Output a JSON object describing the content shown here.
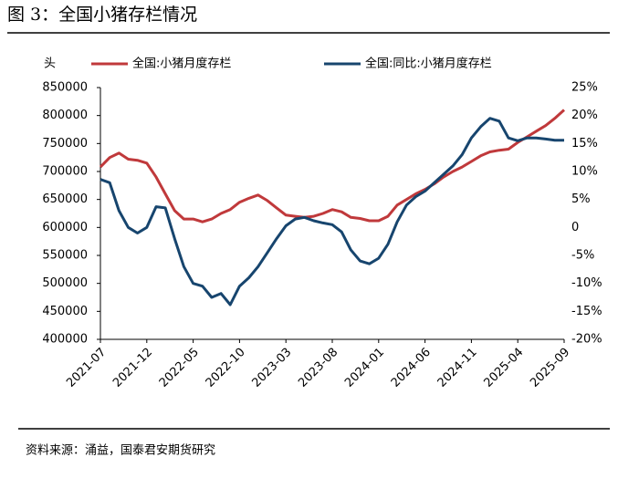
{
  "chart_data": {
    "type": "line",
    "title": "图 3：全国小猪存栏情况",
    "y_unit": "头",
    "source": "资料来源：涌益，国泰君安期货研究",
    "categories": [
      "2021-07",
      null,
      null,
      null,
      null,
      "2021-12",
      null,
      null,
      null,
      null,
      "2022-05",
      null,
      null,
      null,
      null,
      "2022-10",
      null,
      null,
      null,
      null,
      "2023-03",
      null,
      null,
      null,
      null,
      "2023-08",
      null,
      null,
      null,
      null,
      "2024-01",
      null,
      null,
      null,
      null,
      "2024-06",
      null,
      null,
      null,
      null,
      "2024-11",
      null,
      null,
      null,
      null,
      "2025-04",
      null,
      null,
      null,
      null,
      "2025-09"
    ],
    "series": [
      {
        "name": "全国:小猪月度存栏",
        "color": "#c0393b",
        "values": [
          708000,
          725000,
          733000,
          722000,
          720000,
          715000,
          690000,
          660000,
          630000,
          615000,
          615000,
          610000,
          615000,
          625000,
          632000,
          645000,
          652000,
          658000,
          648000,
          635000,
          622000,
          620000,
          618000,
          620000,
          625000,
          632000,
          628000,
          618000,
          616000,
          612000,
          612000,
          620000,
          640000,
          650000,
          660000,
          668000,
          678000,
          690000,
          700000,
          708000,
          718000,
          728000,
          735000,
          738000,
          740000,
          752000,
          762000,
          772000,
          782000,
          795000,
          810000
        ]
      },
      {
        "name": "全国:同比:小猪月度存栏",
        "color": "#17456e",
        "axis": "y2",
        "values": [
          8.6,
          8,
          3,
          0,
          -1,
          0,
          3.7,
          3.5,
          -2,
          -7,
          -10,
          -10.5,
          -12.5,
          -11.8,
          -13.8,
          -10.5,
          -9,
          -7,
          -4.5,
          -2,
          0.3,
          1.5,
          1.8,
          1.2,
          0.8,
          0.5,
          -0.8,
          -4,
          -6,
          -6.5,
          -5.5,
          -3,
          1,
          4,
          5.5,
          6.5,
          8,
          9.5,
          11,
          13,
          16,
          18,
          19.5,
          19,
          16,
          15.5,
          16,
          16,
          15.8,
          15.6,
          15.6
        ]
      }
    ],
    "ylim": [
      400000,
      850000
    ],
    "yticks": [
      400000,
      450000,
      500000,
      550000,
      600000,
      650000,
      700000,
      750000,
      800000,
      850000
    ],
    "y2lim": [
      -20,
      25
    ],
    "y2ticks": [
      {
        "value": -20,
        "label": "-20%"
      },
      {
        "value": -15,
        "label": "-15%"
      },
      {
        "value": -10,
        "label": "-10%"
      },
      {
        "value": -5,
        "label": "-5%"
      },
      0,
      {
        "value": 5,
        "label": "5%"
      },
      {
        "value": 10,
        "label": "10%"
      },
      {
        "value": 15,
        "label": "15%"
      },
      {
        "value": 20,
        "label": "20%"
      },
      {
        "value": 25,
        "label": "25%"
      }
    ]
  }
}
